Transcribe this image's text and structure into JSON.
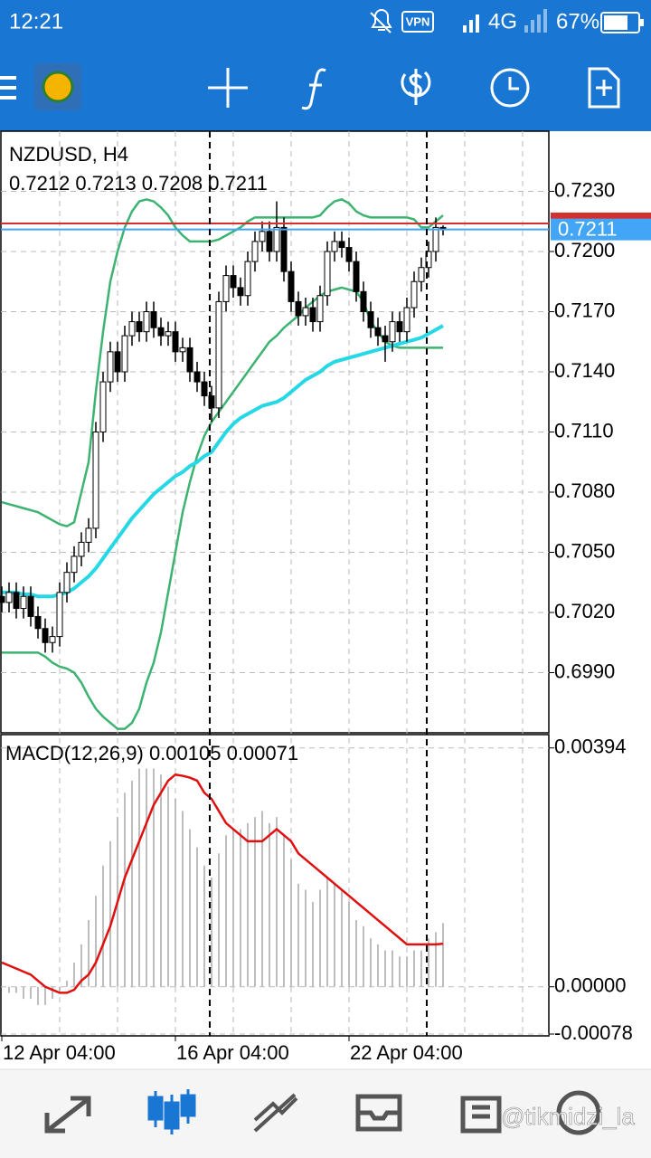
{
  "status_bar": {
    "time": "12:21",
    "vpn": "VPN",
    "network": "4G",
    "battery": "67%"
  },
  "chart_data": [
    {
      "type": "candlestick",
      "title": "NZDUSD, H4",
      "subtitle": "0.7212 0.7213 0.7208 0.7211",
      "ylim": [
        0.696,
        0.726
      ],
      "yticks": [
        {
          "value": 0.723,
          "label": "0.7230"
        },
        {
          "value": 0.72,
          "label": "0.7200"
        },
        {
          "value": 0.717,
          "label": "0.7170"
        },
        {
          "value": 0.714,
          "label": "0.7140"
        },
        {
          "value": 0.711,
          "label": "0.7110"
        },
        {
          "value": 0.708,
          "label": "0.7080"
        },
        {
          "value": 0.705,
          "label": "0.7050"
        },
        {
          "value": 0.702,
          "label": "0.7020"
        },
        {
          "value": 0.699,
          "label": "0.6990"
        }
      ],
      "xticks": [
        {
          "value": 0,
          "label": "12 Apr 04:00"
        },
        {
          "value": 24,
          "label": "16 Apr 04:00"
        },
        {
          "value": 48,
          "label": "22 Apr 04:00"
        }
      ],
      "grid": true,
      "up_color": "#ffffff",
      "down_color": "#000000",
      "open": [
        0.7028,
        0.7025,
        0.703,
        0.7022,
        0.7028,
        0.7018,
        0.7012,
        0.7005,
        0.7008,
        0.703,
        0.704,
        0.7048,
        0.7055,
        0.7062,
        0.711,
        0.7135,
        0.715,
        0.714,
        0.7158,
        0.7165,
        0.716,
        0.717,
        0.7162,
        0.7158,
        0.716,
        0.715,
        0.7152,
        0.714,
        0.7135,
        0.7128,
        0.7122,
        0.7175,
        0.7188,
        0.7182,
        0.7178,
        0.7195,
        0.7205,
        0.721,
        0.72,
        0.7212,
        0.719,
        0.7175,
        0.7168,
        0.7172,
        0.7165,
        0.7178,
        0.72,
        0.7205,
        0.7202,
        0.7195,
        0.718,
        0.717,
        0.7162,
        0.7158,
        0.7155,
        0.7165,
        0.716,
        0.7172,
        0.7185,
        0.7192,
        0.72,
        0.7212
      ],
      "high": [
        0.7033,
        0.7035,
        0.7035,
        0.7033,
        0.7033,
        0.7023,
        0.7017,
        0.7013,
        0.7035,
        0.7045,
        0.7053,
        0.706,
        0.7067,
        0.7115,
        0.714,
        0.7155,
        0.7155,
        0.7163,
        0.717,
        0.717,
        0.7175,
        0.7175,
        0.7167,
        0.7165,
        0.7165,
        0.7157,
        0.7157,
        0.7145,
        0.714,
        0.7133,
        0.718,
        0.7193,
        0.7193,
        0.7187,
        0.72,
        0.721,
        0.7215,
        0.7215,
        0.7225,
        0.7217,
        0.7195,
        0.718,
        0.7177,
        0.7177,
        0.7183,
        0.7205,
        0.721,
        0.721,
        0.7207,
        0.72,
        0.7185,
        0.7175,
        0.7167,
        0.7163,
        0.717,
        0.717,
        0.7177,
        0.719,
        0.7197,
        0.7205,
        0.7217,
        0.7213
      ],
      "low": [
        0.702,
        0.702,
        0.7017,
        0.7017,
        0.7013,
        0.7007,
        0.7,
        0.7,
        0.7003,
        0.7025,
        0.7035,
        0.7043,
        0.705,
        0.7057,
        0.7105,
        0.713,
        0.7135,
        0.7135,
        0.7153,
        0.7155,
        0.7155,
        0.7157,
        0.7153,
        0.7153,
        0.7145,
        0.7145,
        0.7135,
        0.713,
        0.7123,
        0.7115,
        0.7117,
        0.717,
        0.7177,
        0.7173,
        0.7173,
        0.719,
        0.72,
        0.7195,
        0.7195,
        0.7185,
        0.717,
        0.7163,
        0.7163,
        0.716,
        0.716,
        0.7173,
        0.7195,
        0.7197,
        0.719,
        0.7175,
        0.7165,
        0.7157,
        0.7153,
        0.7145,
        0.715,
        0.7155,
        0.7155,
        0.7167,
        0.718,
        0.7187,
        0.7195,
        0.7208
      ],
      "close": [
        0.7025,
        0.703,
        0.7022,
        0.7028,
        0.7018,
        0.7012,
        0.7005,
        0.7008,
        0.703,
        0.704,
        0.7048,
        0.7055,
        0.7062,
        0.711,
        0.7135,
        0.715,
        0.714,
        0.7158,
        0.7165,
        0.716,
        0.717,
        0.7162,
        0.7158,
        0.716,
        0.715,
        0.7152,
        0.714,
        0.7135,
        0.7128,
        0.7122,
        0.7175,
        0.7188,
        0.7182,
        0.7178,
        0.7195,
        0.7205,
        0.721,
        0.72,
        0.7212,
        0.719,
        0.7175,
        0.7168,
        0.7172,
        0.7165,
        0.7178,
        0.72,
        0.7205,
        0.7202,
        0.7195,
        0.718,
        0.717,
        0.7162,
        0.7158,
        0.7155,
        0.7165,
        0.716,
        0.7172,
        0.7185,
        0.7192,
        0.72,
        0.7212,
        0.7211
      ],
      "overlays": [
        {
          "color": "#3cb371",
          "values": [
            0.7075,
            0.7074,
            0.7073,
            0.7072,
            0.7071,
            0.707,
            0.7068,
            0.7066,
            0.7064,
            0.7063,
            0.7065,
            0.708,
            0.7095,
            0.713,
            0.716,
            0.7185,
            0.72,
            0.7212,
            0.722,
            0.7225,
            0.7226,
            0.7225,
            0.7222,
            0.7218,
            0.7212,
            0.7208,
            0.7205,
            0.7205,
            0.7205,
            0.7205,
            0.7206,
            0.7208,
            0.721,
            0.7212,
            0.7215,
            0.7217,
            0.7217,
            0.7217,
            0.7217,
            0.7217,
            0.7217,
            0.7217,
            0.7217,
            0.7217,
            0.7218,
            0.7222,
            0.7225,
            0.7226,
            0.7224,
            0.722,
            0.7218,
            0.7217,
            0.7217,
            0.7217,
            0.7217,
            0.7217,
            0.7217,
            0.7216,
            0.7212,
            0.7212,
            0.7215,
            0.7218
          ]
        },
        {
          "color": "#3cb371",
          "values": [
            0.7,
            0.7,
            0.7,
            0.7,
            0.7,
            0.7,
            0.6998,
            0.6995,
            0.6993,
            0.6992,
            0.699,
            0.6985,
            0.6978,
            0.6972,
            0.6968,
            0.6965,
            0.6962,
            0.6962,
            0.6965,
            0.6972,
            0.6985,
            0.6995,
            0.701,
            0.703,
            0.705,
            0.707,
            0.7085,
            0.7098,
            0.7108,
            0.7115,
            0.712,
            0.7125,
            0.713,
            0.7135,
            0.714,
            0.7145,
            0.715,
            0.7155,
            0.7158,
            0.7162,
            0.7165,
            0.7168,
            0.7172,
            0.7175,
            0.7178,
            0.718,
            0.7181,
            0.7182,
            0.7181,
            0.718,
            0.7175,
            0.7165,
            0.716,
            0.7155,
            0.7153,
            0.7152,
            0.7152,
            0.7152,
            0.7152,
            0.7152,
            0.7152,
            0.7152
          ]
        },
        {
          "color": "#26d7e6",
          "values": [
            0.703,
            0.703,
            0.703,
            0.7029,
            0.7029,
            0.7028,
            0.7028,
            0.7028,
            0.7029,
            0.703,
            0.7032,
            0.7035,
            0.7038,
            0.7042,
            0.7047,
            0.7052,
            0.7057,
            0.7062,
            0.7067,
            0.7071,
            0.7075,
            0.7079,
            0.7082,
            0.7085,
            0.7088,
            0.709,
            0.7093,
            0.7095,
            0.7098,
            0.71,
            0.7105,
            0.711,
            0.7114,
            0.7117,
            0.7119,
            0.7121,
            0.7123,
            0.7124,
            0.7125,
            0.7127,
            0.713,
            0.7133,
            0.7136,
            0.7138,
            0.714,
            0.7143,
            0.7145,
            0.7146,
            0.7147,
            0.7148,
            0.7149,
            0.715,
            0.7151,
            0.7152,
            0.7153,
            0.7154,
            0.7155,
            0.7156,
            0.7157,
            0.7159,
            0.7161,
            0.7163
          ]
        }
      ],
      "price_lines": [
        {
          "value": 0.7214,
          "color": "#d32f2f"
        },
        {
          "value": 0.7211,
          "label": "0.7211",
          "color": "#42a5f5"
        }
      ]
    },
    {
      "type": "macd",
      "title": "MACD(12,26,9) 0.00105 0.00071",
      "ylim": [
        -0.00081,
        0.00416
      ],
      "yticks": [
        {
          "value": 0.00394,
          "label": "0.00394"
        },
        {
          "value": 0,
          "label": "0.00000"
        },
        {
          "value": -0.00078,
          "label": "-0.00078"
        }
      ],
      "series": [
        {
          "color": "#bdbdbd",
          "values": [
            0.0,
            -0.0001,
            -0.0001,
            -0.0002,
            -0.0002,
            -0.0003,
            -0.0003,
            -0.0002,
            -0.0001,
            0.0001,
            0.0004,
            0.0007,
            0.0011,
            0.0015,
            0.002,
            0.0024,
            0.0028,
            0.0032,
            0.0034,
            0.0036,
            0.0036,
            0.0036,
            0.0035,
            0.0033,
            0.0031,
            0.0029,
            0.0026,
            0.0023,
            0.002,
            0.0018,
            0.0022,
            0.0025,
            0.0026,
            0.0026,
            0.0027,
            0.0028,
            0.0029,
            0.0027,
            0.0028,
            0.0025,
            0.0021,
            0.0017,
            0.0016,
            0.0014,
            0.0016,
            0.0018,
            0.0017,
            0.0016,
            0.0014,
            0.0011,
            0.001,
            0.0008,
            0.0007,
            0.0006,
            0.0006,
            0.0005,
            0.0005,
            0.0006,
            0.0006,
            0.0008,
            0.0009,
            0.00105
          ]
        },
        {
          "color": "#e01010",
          "values": [
            0.0004,
            0.00035,
            0.0003,
            0.00025,
            0.0002,
            0.0001,
            0.0,
            -5e-05,
            -0.0001,
            -0.0001,
            -5e-05,
            0.0001,
            0.0002,
            0.0004,
            0.0007,
            0.001,
            0.0014,
            0.0018,
            0.0021,
            0.0024,
            0.0027,
            0.003,
            0.0032,
            0.0034,
            0.0035,
            0.00348,
            0.00345,
            0.0034,
            0.0032,
            0.0031,
            0.0029,
            0.0027,
            0.0026,
            0.0025,
            0.0024,
            0.0024,
            0.0024,
            0.0025,
            0.0026,
            0.0025,
            0.0024,
            0.0022,
            0.0021,
            0.002,
            0.0019,
            0.0018,
            0.0017,
            0.0016,
            0.0015,
            0.0014,
            0.0013,
            0.0012,
            0.0011,
            0.001,
            0.0009,
            0.0008,
            0.0007,
            0.0007,
            0.0007,
            0.0007,
            0.0007,
            0.00071
          ]
        }
      ]
    }
  ],
  "watermark": "@tikmidzi_la"
}
